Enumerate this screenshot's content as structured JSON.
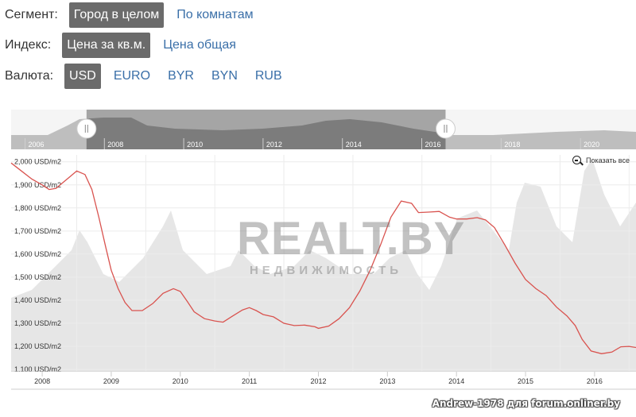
{
  "filters": {
    "segment": {
      "label": "Сегмент:",
      "options": [
        "Город в целом",
        "По комнатам"
      ],
      "active": 0
    },
    "index": {
      "label": "Индекс:",
      "options": [
        "Цена за кв.м.",
        "Цена общая"
      ],
      "active": 0
    },
    "currency": {
      "label": "Валюта:",
      "options": [
        "USD",
        "EURO",
        "BYR",
        "BYN",
        "RUB"
      ],
      "active": 0
    }
  },
  "zoom_label": "Показать все",
  "logo": {
    "main": "REALT.BY",
    "sub": "НЕДВИЖИМОСТЬ"
  },
  "watermark": "Andrew-1978 для forum.onliner.by",
  "colors": {
    "line": "#d9534f",
    "active_bg": "#6b6b6b",
    "link": "#3a6fa8",
    "volume": "#e6e6e6",
    "navigator": "#8a8a8a"
  },
  "chart_data": {
    "type": "line",
    "series": [
      {
        "values": [
          [
            2007.55,
            1995
          ],
          [
            2007.7,
            1960
          ],
          [
            2007.85,
            1925
          ],
          [
            2008.0,
            1900
          ],
          [
            2008.1,
            1880
          ],
          [
            2008.2,
            1885
          ],
          [
            2008.3,
            1910
          ],
          [
            2008.4,
            1935
          ],
          [
            2008.5,
            1960
          ],
          [
            2008.62,
            1945
          ],
          [
            2008.72,
            1880
          ],
          [
            2008.82,
            1760
          ],
          [
            2008.92,
            1630
          ],
          [
            2009.0,
            1530
          ],
          [
            2009.1,
            1450
          ],
          [
            2009.2,
            1390
          ],
          [
            2009.3,
            1355
          ],
          [
            2009.45,
            1355
          ],
          [
            2009.6,
            1385
          ],
          [
            2009.75,
            1430
          ],
          [
            2009.9,
            1450
          ],
          [
            2010.0,
            1438
          ],
          [
            2010.1,
            1395
          ],
          [
            2010.2,
            1350
          ],
          [
            2010.35,
            1320
          ],
          [
            2010.5,
            1310
          ],
          [
            2010.62,
            1305
          ],
          [
            2010.75,
            1330
          ],
          [
            2010.9,
            1358
          ],
          [
            2011.0,
            1368
          ],
          [
            2011.1,
            1355
          ],
          [
            2011.2,
            1338
          ],
          [
            2011.35,
            1328
          ],
          [
            2011.5,
            1300
          ],
          [
            2011.65,
            1290
          ],
          [
            2011.8,
            1292
          ],
          [
            2011.95,
            1285
          ],
          [
            2012.0,
            1278
          ],
          [
            2012.15,
            1288
          ],
          [
            2012.3,
            1320
          ],
          [
            2012.45,
            1368
          ],
          [
            2012.6,
            1440
          ],
          [
            2012.75,
            1530
          ],
          [
            2012.9,
            1640
          ],
          [
            2013.05,
            1760
          ],
          [
            2013.2,
            1830
          ],
          [
            2013.35,
            1820
          ],
          [
            2013.45,
            1780
          ],
          [
            2013.6,
            1782
          ],
          [
            2013.75,
            1785
          ],
          [
            2013.9,
            1760
          ],
          [
            2014.0,
            1752
          ],
          [
            2014.15,
            1752
          ],
          [
            2014.3,
            1758
          ],
          [
            2014.42,
            1748
          ],
          [
            2014.55,
            1715
          ],
          [
            2014.7,
            1640
          ],
          [
            2014.85,
            1560
          ],
          [
            2015.0,
            1490
          ],
          [
            2015.15,
            1450
          ],
          [
            2015.3,
            1420
          ],
          [
            2015.45,
            1370
          ],
          [
            2015.6,
            1332
          ],
          [
            2015.72,
            1290
          ],
          [
            2015.82,
            1230
          ],
          [
            2015.95,
            1180
          ],
          [
            2016.1,
            1168
          ],
          [
            2016.25,
            1175
          ],
          [
            2016.38,
            1198
          ],
          [
            2016.5,
            1200
          ],
          [
            2016.6,
            1195
          ]
        ]
      }
    ],
    "y_ticks": [
      "2,000 USD/m2",
      "1,900 USD/m2",
      "1,800 USD/m2",
      "1,700 USD/m2",
      "1,600 USD/m2",
      "1,500 USD/m2",
      "1,400 USD/m2",
      "1,300 USD/m2",
      "1,200 USD/m2",
      "1,100 USD/m2"
    ],
    "y_tick_values": [
      2000,
      1900,
      1800,
      1700,
      1600,
      1500,
      1400,
      1300,
      1200,
      1100
    ],
    "ylim": [
      1090,
      2030
    ],
    "xlim": [
      2007.55,
      2016.6
    ],
    "x_ticks": [
      "2008",
      "2009",
      "2010",
      "2011",
      "2012",
      "2013",
      "2014",
      "2015",
      "2016"
    ],
    "x_tick_values": [
      2008,
      2009,
      2010,
      2011,
      2012,
      2013,
      2014,
      2015,
      2016
    ],
    "navigator": {
      "x_ticks": [
        "2006",
        "2008",
        "2010",
        "2012",
        "2014",
        "2016",
        "2018",
        "2020"
      ],
      "x_tick_values": [
        2006,
        2008,
        2010,
        2012,
        2014,
        2016,
        2018,
        2020
      ],
      "xlim": [
        2005.65,
        2021.4
      ],
      "selected": [
        2007.55,
        2016.6
      ]
    },
    "grid": true,
    "legend": "none"
  }
}
